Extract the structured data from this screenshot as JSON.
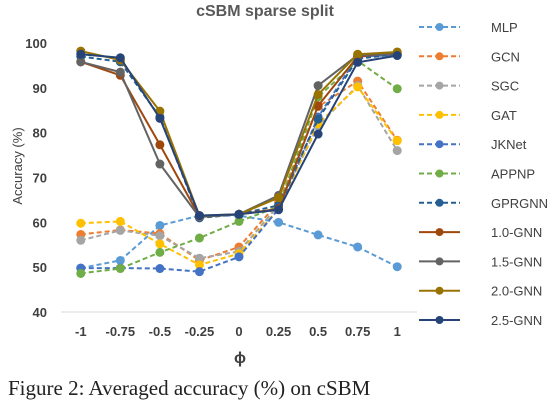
{
  "chart_data": {
    "type": "line",
    "title": "cSBM sparse split",
    "xlabel": "ϕ",
    "ylabel": "Accuracy (%)",
    "x": [
      -1,
      -0.75,
      -0.5,
      -0.25,
      0,
      0.25,
      0.5,
      0.75,
      1
    ],
    "x_tick_labels": [
      "-1",
      "-0.75",
      "-0.5",
      "-0.25",
      "0",
      "0.25",
      "0.5",
      "0.75",
      "1"
    ],
    "y_ticks": [
      40,
      50,
      60,
      70,
      80,
      90,
      100
    ],
    "ylim": [
      40,
      100
    ],
    "grid": false,
    "legend_position": "right",
    "series": [
      {
        "name": "MLP",
        "color": "#5b9bd5",
        "style": "dashed",
        "values": [
          49.8,
          51.5,
          59.3,
          61.5,
          61.5,
          60.0,
          57.2,
          54.5,
          50.1
        ]
      },
      {
        "name": "GCN",
        "color": "#ed7d31",
        "style": "dashed",
        "values": [
          57.3,
          58.3,
          57.5,
          51.5,
          54.5,
          64.5,
          85.8,
          91.5,
          78.3
        ]
      },
      {
        "name": "SGC",
        "color": "#a5a5a5",
        "style": "dashed",
        "values": [
          56.0,
          58.2,
          57.0,
          52.0,
          53.5,
          63.8,
          81.5,
          90.5,
          76.0
        ]
      },
      {
        "name": "GAT",
        "color": "#ffc000",
        "style": "dashed",
        "values": [
          59.8,
          60.2,
          55.2,
          50.5,
          53.0,
          63.0,
          82.0,
          90.2,
          78.2
        ]
      },
      {
        "name": "JKNet",
        "color": "#4472c4",
        "style": "dashed",
        "values": [
          49.8,
          49.8,
          49.7,
          49.0,
          52.3,
          63.0,
          83.5,
          97.0,
          97.3
        ]
      },
      {
        "name": "APPNP",
        "color": "#70ad47",
        "style": "dashed",
        "values": [
          48.6,
          49.7,
          53.3,
          56.5,
          60.2,
          63.5,
          88.0,
          96.0,
          89.8
        ]
      },
      {
        "name": "GPRGNN",
        "color": "#255e91",
        "style": "dashed",
        "values": [
          97.0,
          95.8,
          83.5,
          61.0,
          61.8,
          63.8,
          83.0,
          96.5,
          97.5
        ]
      },
      {
        "name": "1.0-GNN",
        "color": "#9e480e",
        "style": "solid",
        "values": [
          95.8,
          92.8,
          77.3,
          61.3,
          61.8,
          63.0,
          86.0,
          97.0,
          97.8
        ]
      },
      {
        "name": "1.5-GNN",
        "color": "#636363",
        "style": "solid",
        "values": [
          95.8,
          93.5,
          73.0,
          61.2,
          61.8,
          66.0,
          90.5,
          97.3,
          97.5
        ]
      },
      {
        "name": "2.0-GNN",
        "color": "#997300",
        "style": "solid",
        "values": [
          98.2,
          96.2,
          84.8,
          61.5,
          61.8,
          65.5,
          88.5,
          97.5,
          98.0
        ]
      },
      {
        "name": "2.5-GNN",
        "color": "#264478",
        "style": "solid",
        "values": [
          97.5,
          96.7,
          83.2,
          61.5,
          61.8,
          62.8,
          79.7,
          95.7,
          97.2
        ]
      }
    ]
  },
  "caption": "Figure 2:   Averaged accuracy (%) on cSBM"
}
